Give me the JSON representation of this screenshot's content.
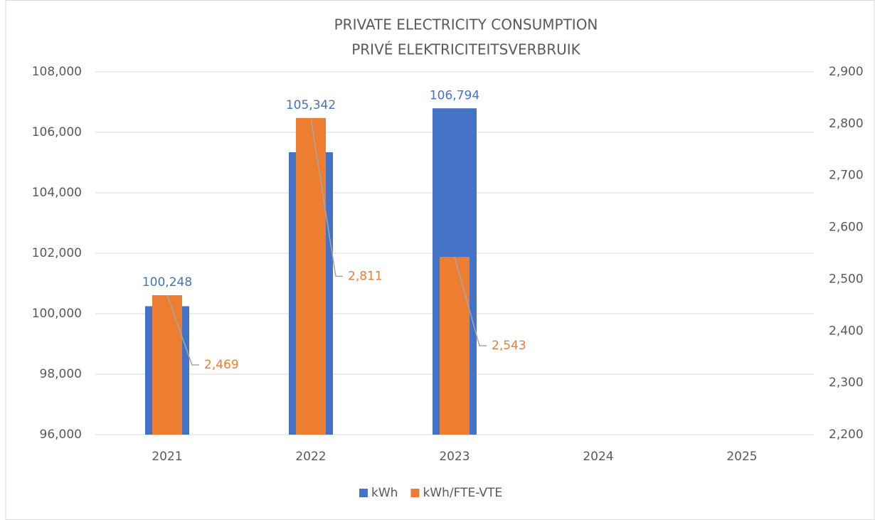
{
  "chart_data": {
    "type": "bar",
    "title": "PRIVATE ELECTRICITY CONSUMPTION",
    "subtitle": "PRIVÉ ELEKTRICITEITSVERBRUIK",
    "categories": [
      "2021",
      "2022",
      "2023",
      "2024",
      "2025"
    ],
    "series": [
      {
        "name": "kWh",
        "color": "#4472c4",
        "values": [
          100248,
          105342,
          106794,
          null,
          null
        ],
        "value_labels": [
          "100,248",
          "105,342",
          "106,794",
          null,
          null
        ]
      },
      {
        "name": "kWh/FTE-VTE",
        "color": "#ed7d31",
        "axis": "y2",
        "values": [
          2469,
          2811,
          2543,
          null,
          null
        ],
        "value_labels": [
          "2,469",
          "2,811",
          "2,543",
          null,
          null
        ]
      }
    ],
    "ylim": [
      96000,
      108000
    ],
    "yticks": [
      {
        "value": 96000,
        "label": "96,000"
      },
      {
        "value": 98000,
        "label": "98,000"
      },
      {
        "value": 100000,
        "label": "100,000"
      },
      {
        "value": 102000,
        "label": "102,000"
      },
      {
        "value": 104000,
        "label": "104,000"
      },
      {
        "value": 106000,
        "label": "106,000"
      },
      {
        "value": 108000,
        "label": "108,000"
      }
    ],
    "y2lim": [
      2200,
      2900
    ],
    "y2ticks": [
      {
        "value": 2200,
        "label": "2,200"
      },
      {
        "value": 2300,
        "label": "2,300"
      },
      {
        "value": 2400,
        "label": "2,400"
      },
      {
        "value": 2500,
        "label": "2,500"
      },
      {
        "value": 2600,
        "label": "2,600"
      },
      {
        "value": 2700,
        "label": "2,700"
      },
      {
        "value": 2800,
        "label": "2,800"
      },
      {
        "value": 2900,
        "label": "2,900"
      }
    ],
    "grid": true,
    "legend": "bottom"
  }
}
